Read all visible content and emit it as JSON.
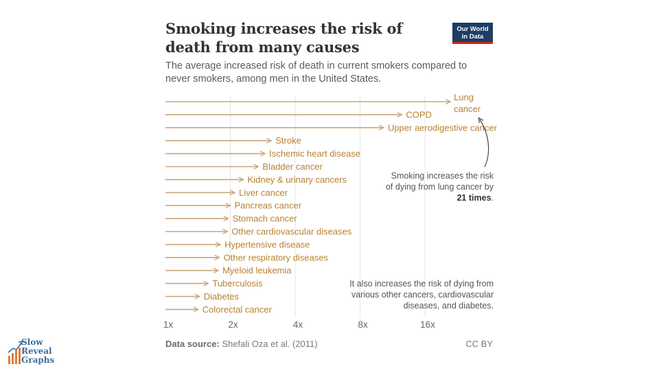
{
  "header": {
    "title": "Smoking increases the risk of death from many causes",
    "subtitle": "The average increased risk of death in current smokers compared to never smokers, among men in the United States.",
    "logo_line1": "Our World",
    "logo_line2": "in Data"
  },
  "annotations": {
    "lung_pre": "Smoking increases the risk of dying from lung cancer by ",
    "lung_bold": "21 times",
    "lung_post": ".",
    "others": "It also increases the risk of dying from various other cancers, cardiovascular diseases, and diabetes."
  },
  "footer": {
    "source_label": "Data source:",
    "source_text": "Shefali Oza et al. (2011)",
    "license": "CC BY"
  },
  "branding": {
    "line1": "Slow",
    "line2": "Reveal",
    "line3": "Graphs"
  },
  "colors": {
    "bar": "#c9a57b",
    "label": "#b7822f",
    "grid": "#e6e6e6",
    "axis_text": "#666666"
  },
  "chart_data": {
    "type": "bar",
    "orientation": "horizontal",
    "scale": "log2",
    "baseline": 1,
    "xlim": [
      1,
      21
    ],
    "ticks": [
      1,
      2,
      4,
      8,
      16
    ],
    "tick_labels": [
      "1x",
      "2x",
      "4x",
      "8x",
      "16x"
    ],
    "grid": true,
    "categories": [
      "Lung cancer",
      "COPD",
      "Upper aerodigestive cancer",
      "Stroke",
      "Ischemic heart disease",
      "Bladder cancer",
      "Kidney & urinary cancers",
      "Liver cancer",
      "Pancreas cancer",
      "Stomach cancer",
      "Other cardiovascular diseases",
      "Hypertensive disease",
      "Other respiratory diseases",
      "Myeloid leukemia",
      "Tuberculosis",
      "Diabetes",
      "Colorectal cancer"
    ],
    "values": [
      21,
      12.5,
      10.3,
      3.1,
      2.9,
      2.7,
      2.3,
      2.1,
      2.0,
      1.96,
      1.94,
      1.8,
      1.78,
      1.76,
      1.58,
      1.44,
      1.42
    ]
  }
}
